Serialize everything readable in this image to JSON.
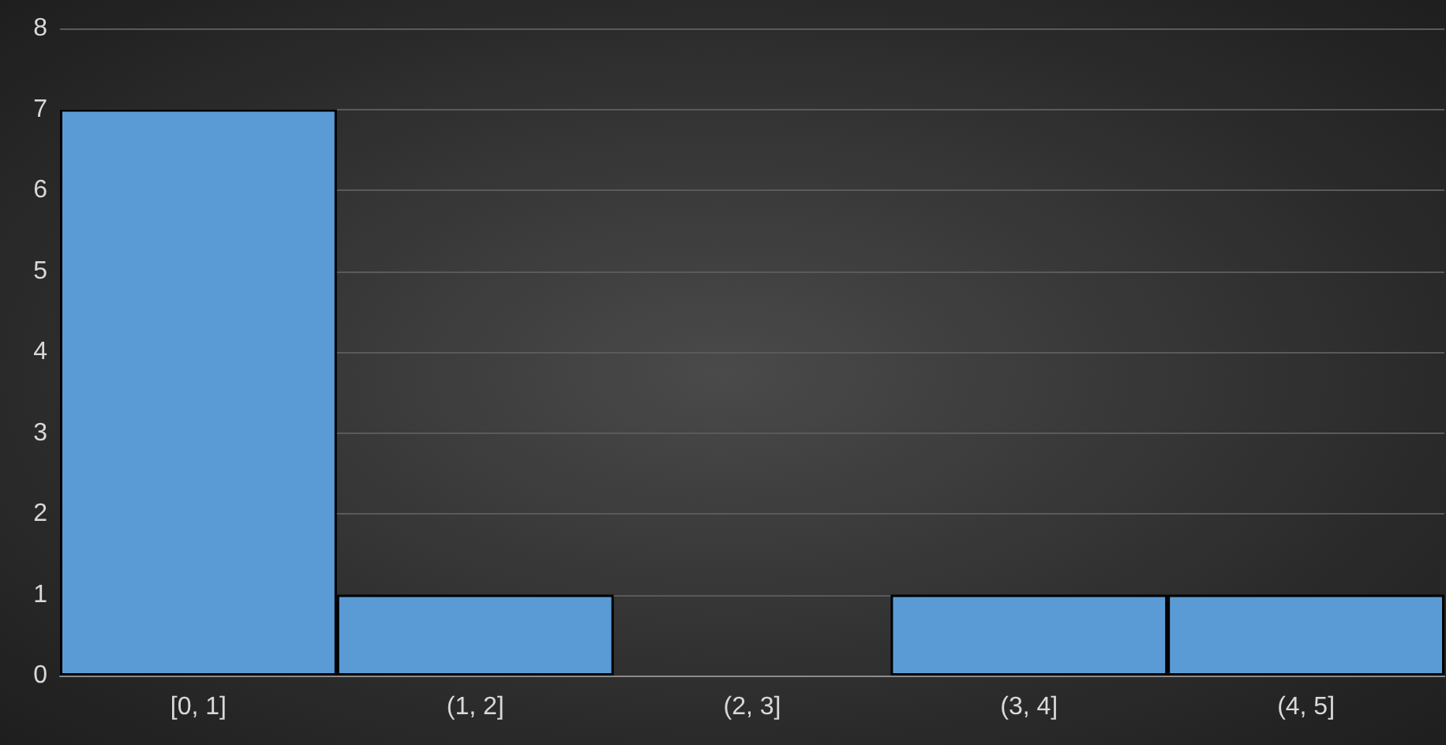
{
  "chart_data": {
    "type": "bar",
    "categories": [
      "[0, 1]",
      "(1, 2]",
      "(2, 3]",
      "(3, 4]",
      "(4, 5]"
    ],
    "values": [
      7,
      1,
      0,
      1,
      1
    ],
    "color": "#5b9bd5",
    "ylim": [
      0,
      8
    ],
    "yticks": [
      0,
      1,
      2,
      3,
      4,
      5,
      6,
      7,
      8
    ],
    "grid": "y"
  }
}
